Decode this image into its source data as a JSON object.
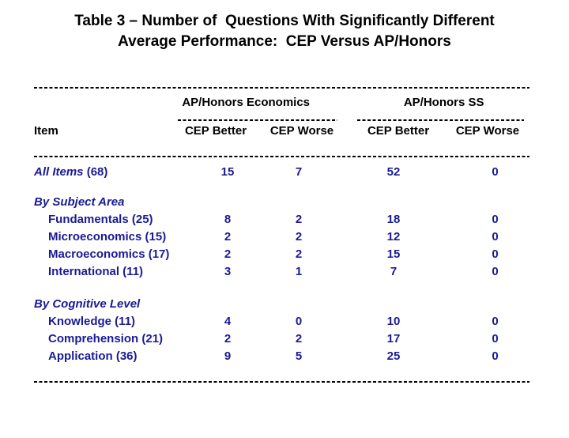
{
  "colors": {
    "data_text": "#1a1a96",
    "heading_text": "#000000",
    "background": "#ffffff"
  },
  "title": {
    "line1": "Table 3 – Number of  Questions With Significantly Different",
    "line2": "Average Performance:  CEP Versus AP/Honors"
  },
  "table": {
    "group_headers": [
      "AP/Honors Economics",
      "AP/Honors SS"
    ],
    "item_column_header": "Item",
    "sub_headers": [
      "CEP Better",
      "CEP Worse",
      "CEP Better",
      "CEP Worse"
    ],
    "rows": [
      {
        "type": "total",
        "label": "All Items",
        "count": "(68)",
        "values": [
          "15",
          "7",
          "52",
          "0"
        ]
      },
      {
        "type": "section",
        "label": "By Subject Area",
        "count": "",
        "values": []
      },
      {
        "type": "item",
        "label": "Fundamentals",
        "count": "(25)",
        "values": [
          "8",
          "2",
          "18",
          "0"
        ]
      },
      {
        "type": "item",
        "label": "Microeconomics",
        "count": "(15)",
        "values": [
          "2",
          "2",
          "12",
          "0"
        ]
      },
      {
        "type": "item",
        "label": "Macroeconomics",
        "count": "(17)",
        "values": [
          "2",
          "2",
          "15",
          "0"
        ]
      },
      {
        "type": "item",
        "label": "International",
        "count": "(11)",
        "values": [
          "3",
          "1",
          "7",
          "0"
        ]
      },
      {
        "type": "section",
        "label": "By Cognitive Level",
        "count": "",
        "values": []
      },
      {
        "type": "item",
        "label": "Knowledge",
        "count": "(11)",
        "values": [
          "4",
          "0",
          "10",
          "0"
        ]
      },
      {
        "type": "item",
        "label": "Comprehension",
        "count": "(21)",
        "values": [
          "2",
          "2",
          "17",
          "0"
        ]
      },
      {
        "type": "item",
        "label": "Application",
        "count": "(36)",
        "values": [
          "9",
          "5",
          "25",
          "0"
        ]
      }
    ]
  }
}
